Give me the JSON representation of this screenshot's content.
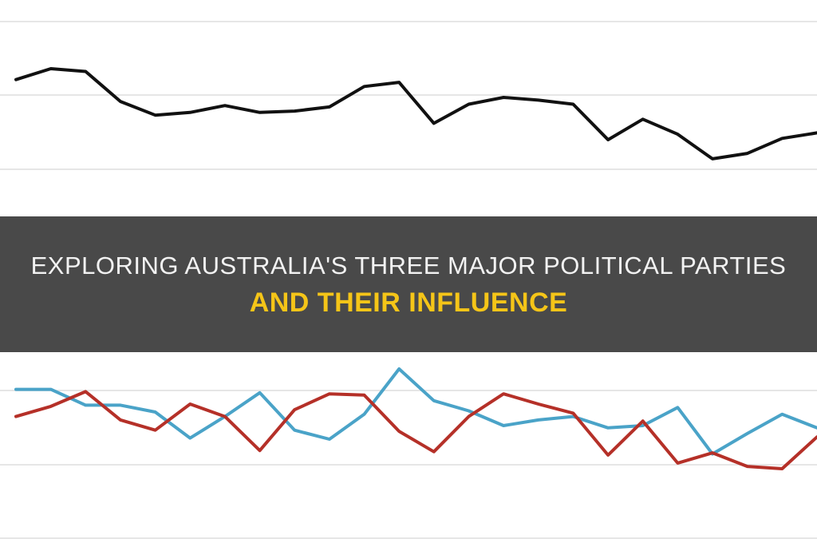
{
  "title": {
    "line1": "Exploring Australia's Three Major Political Parties",
    "line2": "and Their Influence"
  },
  "colors": {
    "gridline": "#e6e6e6",
    "banner_bg": "#3a3a3a",
    "banner_text": "#f2f2f2",
    "banner_highlight": "#f5c518"
  },
  "chart_data": [
    {
      "type": "line",
      "grid": true,
      "ylim": [
        0,
        100
      ],
      "x": [
        0,
        1,
        2,
        3,
        4,
        5,
        6,
        7,
        8,
        9,
        10,
        11,
        12,
        13,
        14,
        15,
        16,
        17,
        18,
        19,
        20,
        21,
        22,
        23
      ],
      "series": [
        {
          "color": "#111111",
          "values": [
            68,
            76,
            74,
            52,
            42,
            44,
            49,
            44,
            45,
            48,
            63,
            66,
            36,
            50,
            55,
            53,
            50,
            24,
            39,
            28,
            10,
            14,
            25,
            29
          ]
        }
      ]
    },
    {
      "type": "line",
      "grid": true,
      "ylim": [
        0,
        100
      ],
      "x": [
        0,
        1,
        2,
        3,
        4,
        5,
        6,
        7,
        8,
        9,
        10,
        11,
        12,
        13,
        14,
        15,
        16,
        17,
        18,
        19,
        20,
        21,
        22,
        23
      ],
      "series": [
        {
          "color": "#4aa3c8",
          "values": [
            82,
            82,
            68,
            68,
            62,
            39,
            58,
            79,
            46,
            38,
            60,
            100,
            72,
            63,
            50,
            55,
            58,
            48,
            50,
            66,
            25,
            43,
            60,
            48
          ]
        },
        {
          "color": "#b53028",
          "values": [
            58,
            67,
            80,
            55,
            46,
            69,
            58,
            28,
            64,
            78,
            77,
            45,
            27,
            58,
            78,
            69,
            61,
            24,
            54,
            17,
            26,
            14,
            12,
            40
          ]
        }
      ]
    }
  ]
}
